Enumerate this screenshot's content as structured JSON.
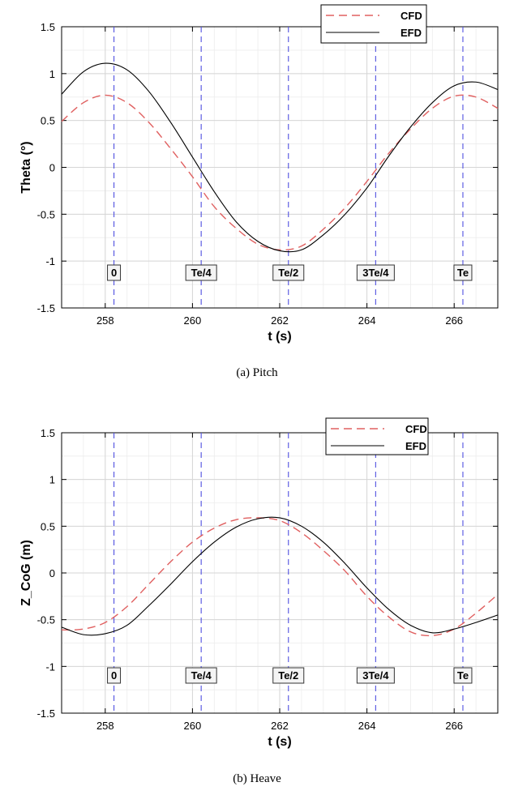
{
  "figure": {
    "captions": [
      "(a)  Pitch",
      "(b)  Heave"
    ]
  },
  "chart_data": [
    {
      "type": "line",
      "xlabel": "t (s)",
      "ylabel": "Theta (°)",
      "xlim": [
        257,
        267
      ],
      "ylim": [
        -1.5,
        1.5
      ],
      "xticks": [
        258,
        260,
        262,
        264,
        266
      ],
      "yticks": [
        -1.5,
        -1,
        -0.5,
        0,
        0.5,
        1,
        1.5
      ],
      "xtick_labels": [
        "258",
        "260",
        "262",
        "264",
        "266"
      ],
      "ytick_labels": [
        "-1.5",
        "-1",
        "-0.5",
        "0",
        "0.5",
        "1",
        "1.5"
      ],
      "grid": true,
      "legend_position": "top-right",
      "colors": {
        "CFD": "#e06060",
        "EFD": "#000000",
        "phase_lines": "#5050e0"
      },
      "phase_markers": [
        {
          "x": 258.2,
          "label": "0"
        },
        {
          "x": 260.2,
          "label": "Te/4"
        },
        {
          "x": 262.2,
          "label": "Te/2"
        },
        {
          "x": 264.2,
          "label": "3Te/4"
        },
        {
          "x": 266.2,
          "label": "Te"
        }
      ],
      "x": [
        257,
        257.5,
        258,
        258.5,
        259,
        259.5,
        260,
        260.5,
        261,
        261.5,
        262,
        262.5,
        263,
        263.5,
        264,
        264.5,
        265,
        265.5,
        266,
        266.5,
        267
      ],
      "series": [
        {
          "name": "CFD",
          "style": "dashed",
          "values": [
            0.49,
            0.69,
            0.77,
            0.69,
            0.48,
            0.2,
            -0.1,
            -0.42,
            -0.65,
            -0.82,
            -0.88,
            -0.84,
            -0.66,
            -0.43,
            -0.15,
            0.15,
            0.41,
            0.63,
            0.76,
            0.75,
            0.63
          ]
        },
        {
          "name": "EFD",
          "style": "solid",
          "values": [
            0.78,
            1.02,
            1.11,
            1.04,
            0.81,
            0.48,
            0.11,
            -0.26,
            -0.58,
            -0.79,
            -0.89,
            -0.88,
            -0.72,
            -0.5,
            -0.22,
            0.12,
            0.43,
            0.69,
            0.87,
            0.91,
            0.83
          ]
        }
      ]
    },
    {
      "type": "line",
      "xlabel": "t (s)",
      "ylabel": "Z_CoG (m)",
      "xlim": [
        257,
        267
      ],
      "ylim": [
        -1.5,
        1.5
      ],
      "xticks": [
        258,
        260,
        262,
        264,
        266
      ],
      "yticks": [
        -1.5,
        -1,
        -0.5,
        0,
        0.5,
        1,
        1.5
      ],
      "xtick_labels": [
        "258",
        "260",
        "262",
        "264",
        "266"
      ],
      "ytick_labels": [
        "-1.5",
        "-1",
        "-0.5",
        "0",
        "0.5",
        "1",
        "1.5"
      ],
      "grid": true,
      "legend_position": "top-right",
      "colors": {
        "CFD": "#e06060",
        "EFD": "#000000",
        "phase_lines": "#5050e0"
      },
      "phase_markers": [
        {
          "x": 258.2,
          "label": "0"
        },
        {
          "x": 260.2,
          "label": "Te/4"
        },
        {
          "x": 262.2,
          "label": "Te/2"
        },
        {
          "x": 264.2,
          "label": "3Te/4"
        },
        {
          "x": 266.2,
          "label": "Te"
        }
      ],
      "x": [
        257,
        257.5,
        258,
        258.5,
        259,
        259.5,
        260,
        260.5,
        261,
        261.5,
        262,
        262.5,
        263,
        263.5,
        264,
        264.5,
        265,
        265.5,
        266,
        266.5,
        267
      ],
      "series": [
        {
          "name": "CFD",
          "style": "dashed",
          "values": [
            -0.61,
            -0.6,
            -0.53,
            -0.36,
            -0.12,
            0.12,
            0.33,
            0.48,
            0.57,
            0.59,
            0.56,
            0.43,
            0.24,
            0.02,
            -0.25,
            -0.47,
            -0.63,
            -0.67,
            -0.6,
            -0.43,
            -0.23
          ]
        },
        {
          "name": "EFD",
          "style": "solid",
          "values": [
            -0.58,
            -0.66,
            -0.65,
            -0.56,
            -0.35,
            -0.12,
            0.12,
            0.33,
            0.49,
            0.58,
            0.59,
            0.5,
            0.33,
            0.1,
            -0.16,
            -0.39,
            -0.56,
            -0.64,
            -0.6,
            -0.53,
            -0.45
          ]
        }
      ]
    }
  ]
}
